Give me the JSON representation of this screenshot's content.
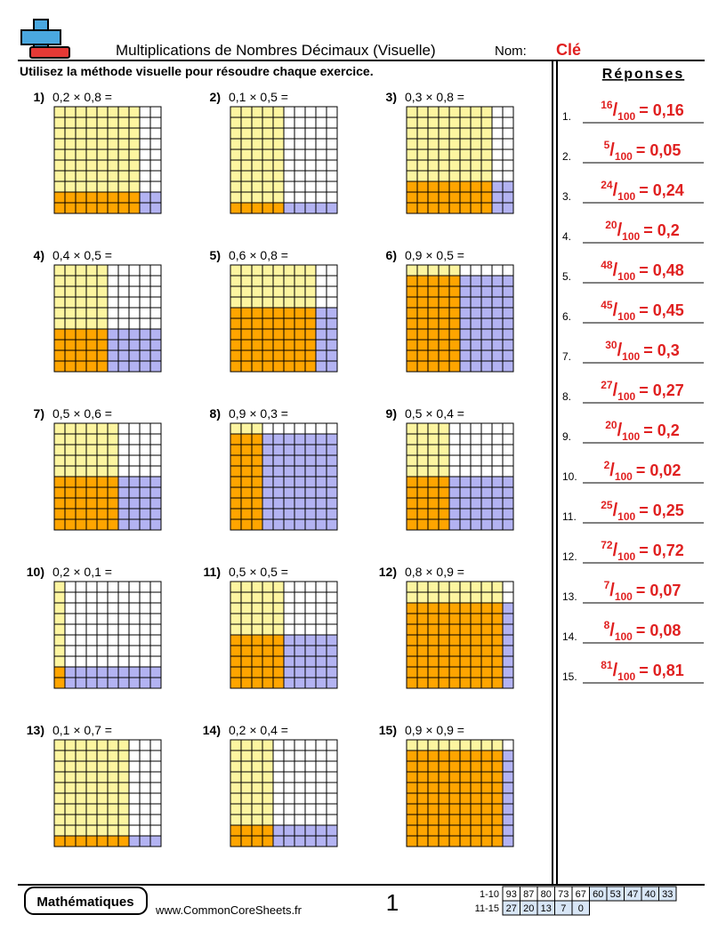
{
  "header": {
    "title": "Multiplications de Nombres Décimaux (Visuelle)",
    "name_label": "Nom:",
    "name_value": "Clé",
    "instructions": "Utilisez la méthode visuelle pour résoudre chaque exercice."
  },
  "problems": [
    {
      "label": "1)",
      "expression": "0,2 × 0,8 ="
    },
    {
      "label": "2)",
      "expression": "0,1 × 0,5 ="
    },
    {
      "label": "3)",
      "expression": "0,3 × 0,8 ="
    },
    {
      "label": "4)",
      "expression": "0,4 × 0,5 ="
    },
    {
      "label": "5)",
      "expression": "0,6 × 0,8 ="
    },
    {
      "label": "6)",
      "expression": "0,9 × 0,5 ="
    },
    {
      "label": "7)",
      "expression": "0,5 × 0,6 ="
    },
    {
      "label": "8)",
      "expression": "0,9 × 0,3 ="
    },
    {
      "label": "9)",
      "expression": "0,5 × 0,4 ="
    },
    {
      "label": "10)",
      "expression": "0,2 × 0,1 ="
    },
    {
      "label": "11)",
      "expression": "0,5 × 0,5 ="
    },
    {
      "label": "12)",
      "expression": "0,8 × 0,9 ="
    },
    {
      "label": "13)",
      "expression": "0,1 × 0,7 ="
    },
    {
      "label": "14)",
      "expression": "0,2 × 0,4 ="
    },
    {
      "label": "15)",
      "expression": "0,9 × 0,9 ="
    }
  ],
  "answers": {
    "title": "Réponses",
    "items": [
      {
        "label": "1.",
        "numerator": "16",
        "slash": "/",
        "denominator": "100",
        "result": "= 0,16"
      },
      {
        "label": "2.",
        "numerator": "5",
        "slash": "/",
        "denominator": "100",
        "result": "= 0,05"
      },
      {
        "label": "3.",
        "numerator": "24",
        "slash": "/",
        "denominator": "100",
        "result": "= 0,24"
      },
      {
        "label": "4.",
        "numerator": "20",
        "slash": "/",
        "denominator": "100",
        "result": "= 0,2"
      },
      {
        "label": "5.",
        "numerator": "48",
        "slash": "/",
        "denominator": "100",
        "result": "= 0,48"
      },
      {
        "label": "6.",
        "numerator": "45",
        "slash": "/",
        "denominator": "100",
        "result": "= 0,45"
      },
      {
        "label": "7.",
        "numerator": "30",
        "slash": "/",
        "denominator": "100",
        "result": "= 0,3"
      },
      {
        "label": "8.",
        "numerator": "27",
        "slash": "/",
        "denominator": "100",
        "result": "= 0,27"
      },
      {
        "label": "9.",
        "numerator": "20",
        "slash": "/",
        "denominator": "100",
        "result": "= 0,2"
      },
      {
        "label": "10.",
        "numerator": "2",
        "slash": "/",
        "denominator": "100",
        "result": "= 0,02"
      },
      {
        "label": "11.",
        "numerator": "25",
        "slash": "/",
        "denominator": "100",
        "result": "= 0,25"
      },
      {
        "label": "12.",
        "numerator": "72",
        "slash": "/",
        "denominator": "100",
        "result": "= 0,72"
      },
      {
        "label": "13.",
        "numerator": "7",
        "slash": "/",
        "denominator": "100",
        "result": "= 0,07"
      },
      {
        "label": "14.",
        "numerator": "8",
        "slash": "/",
        "denominator": "100",
        "result": "= 0,08"
      },
      {
        "label": "15.",
        "numerator": "81",
        "slash": "/",
        "denominator": "100",
        "result": "= 0,81"
      }
    ]
  },
  "footer": {
    "subject": "Mathématiques",
    "website": "www.CommonCoreSheets.fr",
    "page": "1",
    "score_table": {
      "rows": [
        {
          "range": "1-10",
          "scores": [
            93,
            87,
            80,
            73,
            67,
            60,
            53,
            47,
            40,
            33
          ]
        },
        {
          "range": "11-15",
          "scores": [
            27,
            20,
            13,
            7,
            0
          ]
        }
      ]
    }
  }
}
